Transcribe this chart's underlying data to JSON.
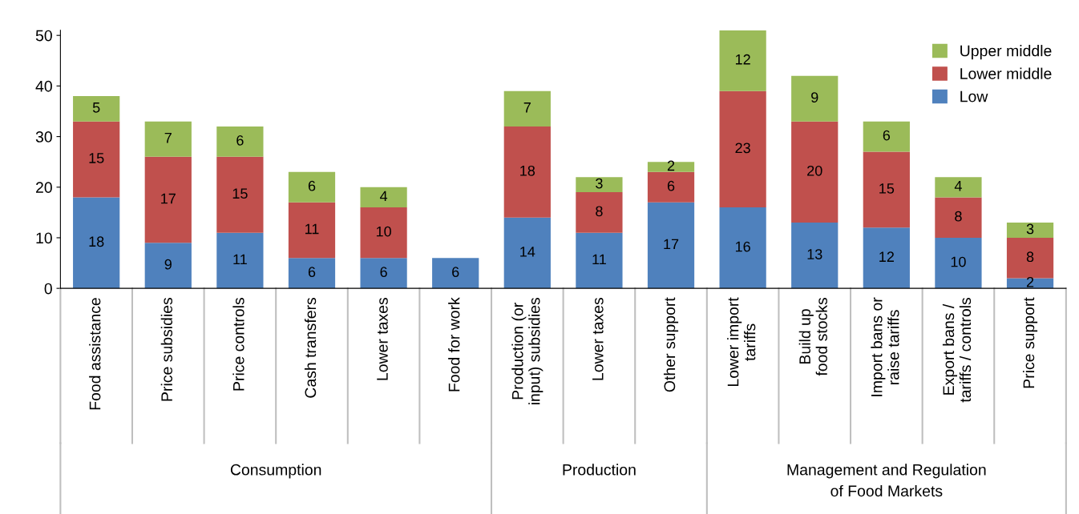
{
  "chart_data": {
    "type": "bar",
    "stacked": true,
    "data_labels": true,
    "legend": "top right",
    "grid": false,
    "categories": [
      "Food assistance",
      "Price subsidies",
      "Price controls",
      "Cash transfers",
      "Lower taxes",
      "Food for work",
      "Production (or\ninput) subsidies",
      "Lower taxes",
      "Other support",
      "Lower import\ntariffs",
      "Build up\nfood stocks",
      "Import bans or\nraise tariffs",
      "Export bans /\ntariffs / controls",
      "Price support"
    ],
    "series": [
      {
        "name": "Low",
        "color": "#4f81bd",
        "values": [
          18,
          9,
          11,
          6,
          6,
          6,
          14,
          11,
          17,
          16,
          13,
          12,
          10,
          2
        ]
      },
      {
        "name": "Lower middle",
        "color": "#c0504d",
        "values": [
          15,
          17,
          15,
          11,
          10,
          null,
          18,
          8,
          6,
          23,
          20,
          15,
          8,
          8
        ]
      },
      {
        "name": "Upper middle",
        "color": "#9bbb59",
        "values": [
          5,
          7,
          6,
          6,
          4,
          null,
          7,
          3,
          2,
          12,
          9,
          6,
          4,
          3
        ]
      }
    ],
    "ylim": [
      0,
      51
    ],
    "yticks": [
      0,
      10,
      20,
      30,
      40,
      50
    ],
    "annotations": [
      "Consumption",
      "Production",
      "Management and Regulation\nof Food Markets"
    ]
  }
}
